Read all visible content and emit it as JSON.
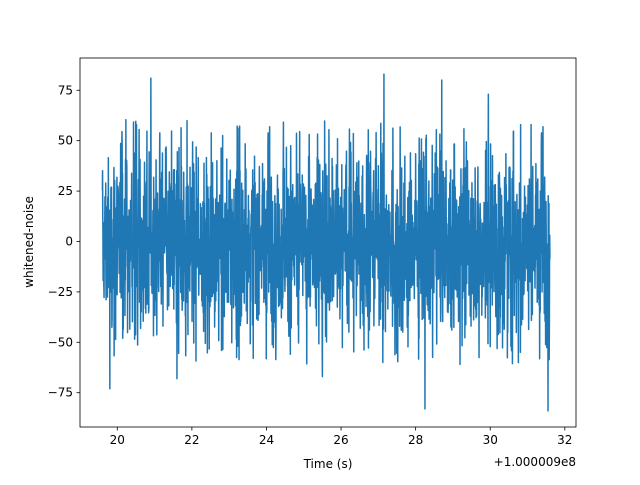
{
  "chart_data": {
    "type": "line",
    "title": "",
    "xlabel": "Time (s)",
    "ylabel": "whitened-noise",
    "x_offset_label": "+1.000009e8",
    "xlim": [
      19.0,
      32.3
    ],
    "ylim": [
      -92,
      91
    ],
    "x_ticks": [
      20,
      22,
      24,
      26,
      28,
      30,
      32
    ],
    "x_tick_labels": [
      "20",
      "22",
      "24",
      "26",
      "28",
      "30",
      "32"
    ],
    "y_ticks": [
      75,
      50,
      25,
      0,
      -25,
      -50,
      -75
    ],
    "y_tick_labels": [
      "75",
      "50",
      "25",
      "0",
      "−25",
      "−50",
      "−75"
    ],
    "grid": false,
    "legend": "none",
    "line_color": "#1f77b4",
    "series": [
      {
        "x_range": [
          19.6,
          31.6
        ],
        "core_band": [
          -36,
          35
        ],
        "notable_peaks": [
          {
            "x": 20.9,
            "y": 81
          },
          {
            "x": 27.15,
            "y": 83
          },
          {
            "x": 28.7,
            "y": 80
          },
          {
            "x": 29.95,
            "y": 73
          },
          {
            "x": 19.8,
            "y": -73
          },
          {
            "x": 28.25,
            "y": -83
          },
          {
            "x": 31.55,
            "y": -84
          },
          {
            "x": 21.6,
            "y": -68
          },
          {
            "x": 25.5,
            "y": -67
          }
        ]
      }
    ]
  }
}
